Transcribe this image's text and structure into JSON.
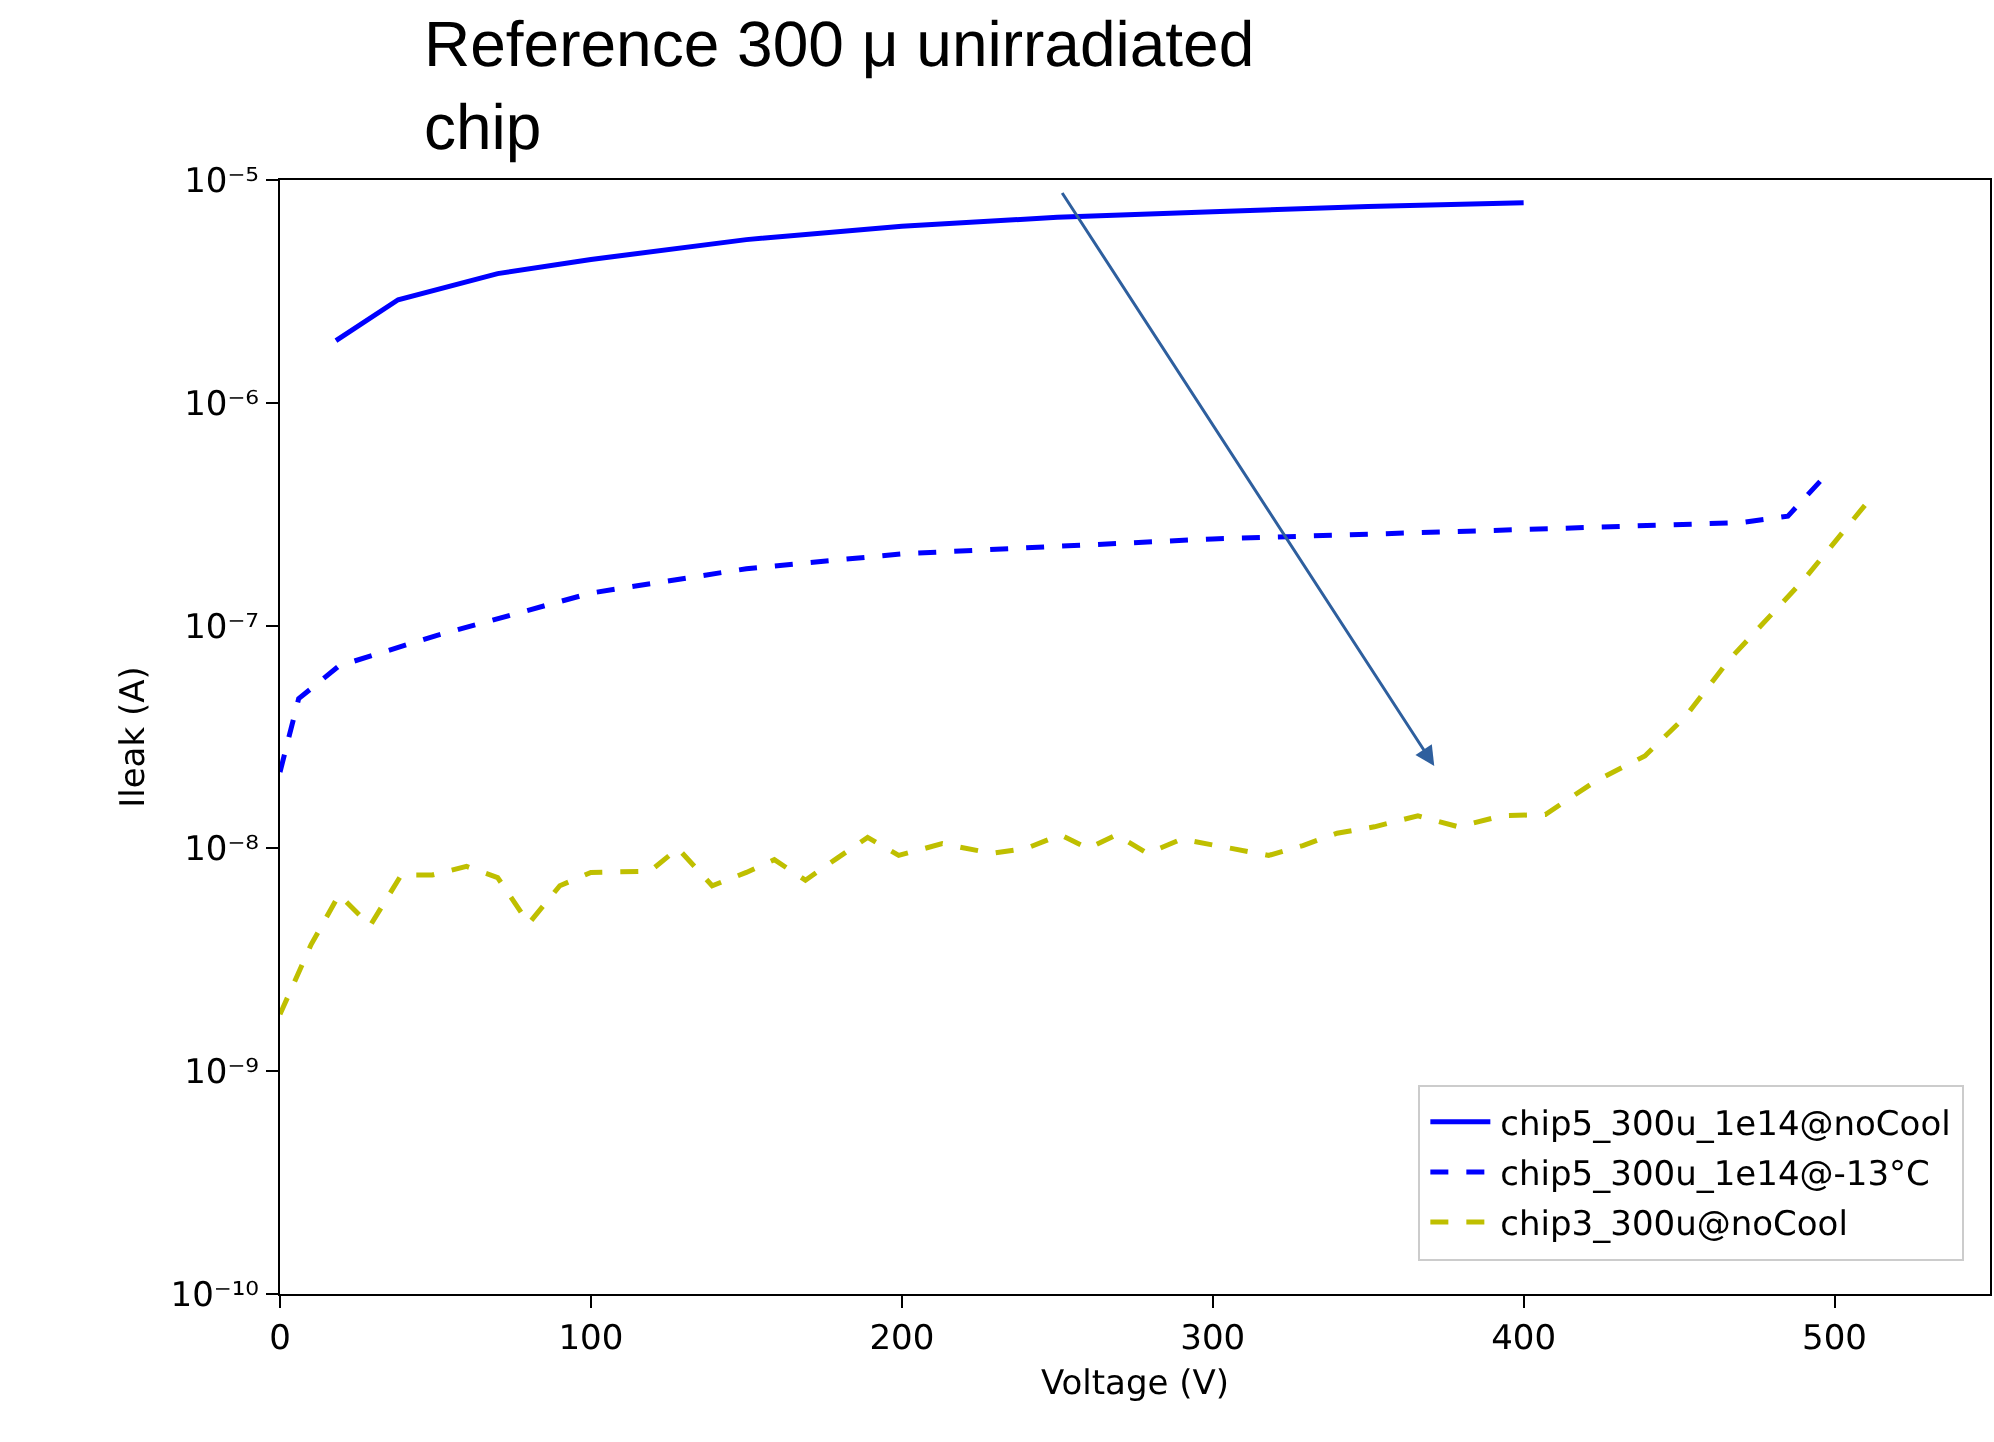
{
  "chart_data": {
    "type": "line",
    "xlabel": "Voltage (V)",
    "ylabel": "Ileak (A)",
    "log": "y",
    "xlim": [
      0,
      550
    ],
    "ylim": [
      1e-10,
      1e-05
    ],
    "xticks": [
      0,
      100,
      200,
      300,
      400,
      500
    ],
    "yticks": [
      {
        "value": 1e-10,
        "label": "10⁻¹⁰"
      },
      {
        "value": 1e-09,
        "label": "10⁻⁹"
      },
      {
        "value": 1e-08,
        "label": "10⁻⁸"
      },
      {
        "value": 1e-07,
        "label": "10⁻⁷"
      },
      {
        "value": 1e-06,
        "label": "10⁻⁶"
      },
      {
        "value": 1e-05,
        "label": "10⁻⁵"
      }
    ],
    "legend": "bottom right",
    "marker": "none",
    "annotations": [
      "Reference 300 μ unirradiated\nchip"
    ],
    "series": [
      {
        "name": "chip5_300u_1e14@noCool",
        "color": "#0000ff",
        "line_style": "solid",
        "x": [
          18,
          38,
          70,
          100,
          150,
          200,
          250,
          300,
          350,
          400
        ],
        "values": [
          1.9e-06,
          2.9e-06,
          3.8e-06,
          4.4e-06,
          5.4e-06,
          6.2e-06,
          6.8e-06,
          7.2e-06,
          7.6e-06,
          7.9e-06
        ]
      },
      {
        "name": "chip5_300u_1e14@-13°C",
        "color": "#0000ff",
        "line_style": "dashed",
        "x": [
          0,
          6,
          19,
          50,
          100,
          150,
          200,
          300,
          400,
          470,
          485,
          497
        ],
        "values": [
          2.2e-08,
          4.7e-08,
          6.6e-08,
          9e-08,
          1.4e-07,
          1.8e-07,
          2.1e-07,
          2.45e-07,
          2.7e-07,
          2.9e-07,
          3.1e-07,
          4.7e-07
        ]
      },
      {
        "name": "chip3_300u@noCool",
        "color": "#bfbf00",
        "line_style": "dashed",
        "x": [
          0,
          10,
          19,
          29,
          39,
          49,
          60,
          70,
          80,
          90,
          100,
          119,
          128,
          139,
          150,
          159,
          169,
          179,
          189,
          199,
          213,
          229,
          240,
          251,
          260,
          269,
          279,
          290,
          306,
          318,
          329,
          340,
          352,
          366,
          379,
          393,
          407,
          423,
          439,
          452,
          466,
          490,
          510
        ],
        "values": [
          1.8e-09,
          3.7e-09,
          6.2e-09,
          4.5e-09,
          7.6e-09,
          7.6e-09,
          8.3e-09,
          7.4e-09,
          4.6e-09,
          6.8e-09,
          7.8e-09,
          7.9e-09,
          1e-08,
          6.8e-09,
          7.8e-09,
          8.9e-09,
          7.2e-09,
          9e-09,
          1.12e-08,
          9.3e-09,
          1.05e-08,
          9.5e-09,
          1e-08,
          1.15e-08,
          1e-08,
          1.15e-08,
          9.5e-09,
          1.1e-08,
          1e-08,
          9.3e-09,
          1.03e-08,
          1.17e-08,
          1.25e-08,
          1.4e-08,
          1.25e-08,
          1.4e-08,
          1.42e-08,
          2e-08,
          2.6e-08,
          3.9e-08,
          7e-08,
          1.6e-07,
          3.5e-07
        ]
      }
    ]
  }
}
